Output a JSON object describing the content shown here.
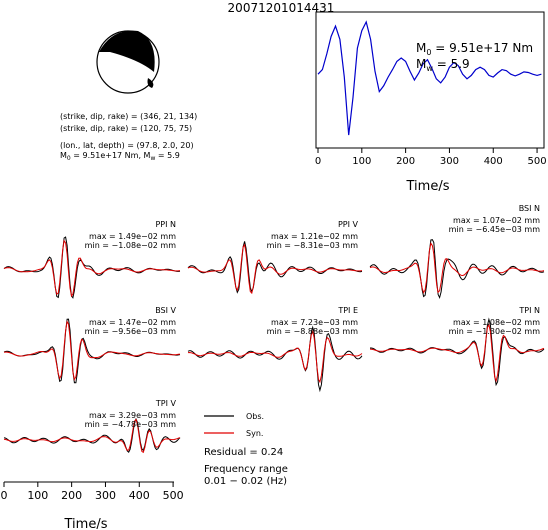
{
  "figure": {
    "event_id": "20071201014431"
  },
  "source": {
    "moment_label": "M",
    "moment_sub": "0",
    "moment_value": " = 9.51e+17 Nm",
    "mw_label": "M",
    "mw_sub": "w",
    "mw_value": " = 5.9",
    "line1": "(strike, dip, rake) = (346, 21, 134)",
    "line2": "(strike, dip, rake) = (120, 75, 75)",
    "line3": "(lon., lat, depth) = (97.8, 2.0, 20)",
    "line4": "M",
    "line4_sub0": "0",
    "line4_mid": " = 9.51e+17 Nm, M",
    "line4_subw": "w",
    "line4_end": " = 5.9"
  },
  "legend": {
    "obs": "Obs.",
    "syn": "Syn.",
    "residual": "Residual = 0.24",
    "freq_title": "Frequency range",
    "freq_value": "0.01 − 0.02 (Hz)"
  },
  "colors": {
    "observed": "#000000",
    "synthetic": "#e00000",
    "stf": "#0000cc",
    "beachball_dark": "#000000"
  },
  "chart_data": [
    {
      "type": "line",
      "name": "source-time-function",
      "xlabel": "Time/s",
      "xlim": [
        0,
        510
      ],
      "xticks": [
        0,
        100,
        200,
        300,
        400,
        500
      ],
      "series": [
        {
          "color": "#0000cc",
          "x": [
            0,
            10,
            20,
            30,
            40,
            50,
            60,
            70,
            80,
            90,
            100,
            110,
            120,
            130,
            140,
            150,
            160,
            170,
            180,
            190,
            200,
            210,
            220,
            230,
            240,
            250,
            260,
            270,
            280,
            290,
            300,
            310,
            320,
            330,
            340,
            350,
            360,
            370,
            380,
            390,
            400,
            410,
            420,
            430,
            440,
            450,
            460,
            470,
            480,
            490,
            500,
            510
          ],
          "y": [
            0.1,
            0.18,
            0.45,
            0.75,
            0.93,
            0.7,
            0.05,
            -0.95,
            -0.3,
            0.55,
            0.85,
            1.0,
            0.7,
            0.15,
            -0.2,
            -0.1,
            0.05,
            0.18,
            0.32,
            0.38,
            0.32,
            0.15,
            0.0,
            0.12,
            0.28,
            0.35,
            0.2,
            0.02,
            -0.05,
            0.05,
            0.22,
            0.3,
            0.25,
            0.1,
            0.02,
            0.08,
            0.18,
            0.22,
            0.18,
            0.08,
            0.05,
            0.12,
            0.18,
            0.16,
            0.1,
            0.07,
            0.1,
            0.14,
            0.13,
            0.1,
            0.08,
            0.1
          ]
        }
      ]
    },
    {
      "type": "line",
      "name": "waveforms",
      "xlabel": "Time/s",
      "xlim": [
        0,
        510
      ],
      "xticks": [
        0,
        100,
        200,
        300,
        400,
        500
      ],
      "panels": [
        {
          "station": "PPI N",
          "max": "max = 1.49e−02 mm",
          "min": "min = −1.08e−02 mm"
        },
        {
          "station": "PPI V",
          "max": "max = 1.21e−02 mm",
          "min": "min = −8.31e−03 mm"
        },
        {
          "station": "BSI N",
          "max": "max = 1.07e−02 mm",
          "min": "min = −6.45e−03 mm"
        },
        {
          "station": "BSI V",
          "max": "max = 1.47e−02 mm",
          "min": "min = −9.56e−03 mm"
        },
        {
          "station": "TPI E",
          "max": "max = 7.23e−03 mm",
          "min": "min = −8.88e−03 mm"
        },
        {
          "station": "TPI N",
          "max": "max = 1.08e−02 mm",
          "min": "min = −1.30e−02 mm"
        },
        {
          "station": "TPI V",
          "max": "max = 3.29e−03 mm",
          "min": "min = −4.78e−03 mm"
        }
      ]
    }
  ]
}
